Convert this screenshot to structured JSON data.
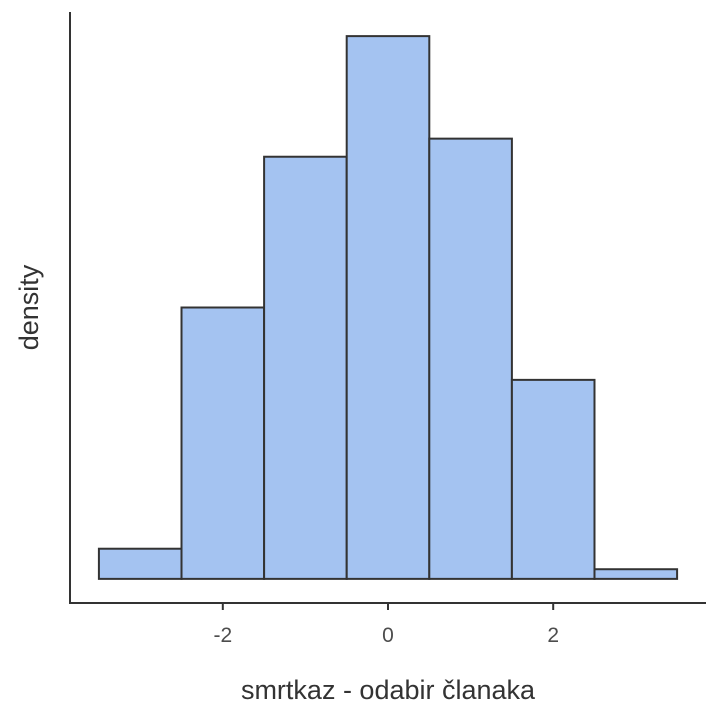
{
  "chart_data": {
    "type": "bar",
    "subtype": "histogram",
    "title": "",
    "xlabel": "smrtkaz - odabir članaka",
    "ylabel": "density",
    "bins": [
      {
        "x0": -3.5,
        "x1": -2.5,
        "density": 0.025
      },
      {
        "x0": -2.5,
        "x1": -1.5,
        "density": 0.225
      },
      {
        "x0": -1.5,
        "x1": -0.5,
        "density": 0.35
      },
      {
        "x0": -0.5,
        "x1": 0.5,
        "density": 0.45
      },
      {
        "x0": 0.5,
        "x1": 1.5,
        "density": 0.365
      },
      {
        "x0": 1.5,
        "x1": 2.5,
        "density": 0.165
      },
      {
        "x0": 2.5,
        "x1": 3.5,
        "density": 0.008
      }
    ],
    "xlim": [
      -3.85,
      3.85
    ],
    "ylim": [
      -0.02,
      0.47
    ],
    "x_ticks": [
      {
        "value": -2,
        "label": "-2"
      },
      {
        "value": 0,
        "label": "0"
      },
      {
        "value": 2,
        "label": "2"
      }
    ],
    "y_ticks_shown": false,
    "grid": false,
    "legend": "none",
    "colors": {
      "bar_fill": "#a4c3f1",
      "bar_stroke": "#333333",
      "axis_line": "#333333",
      "tick_label": "#4d4d4d",
      "axis_title": "#333333"
    }
  }
}
